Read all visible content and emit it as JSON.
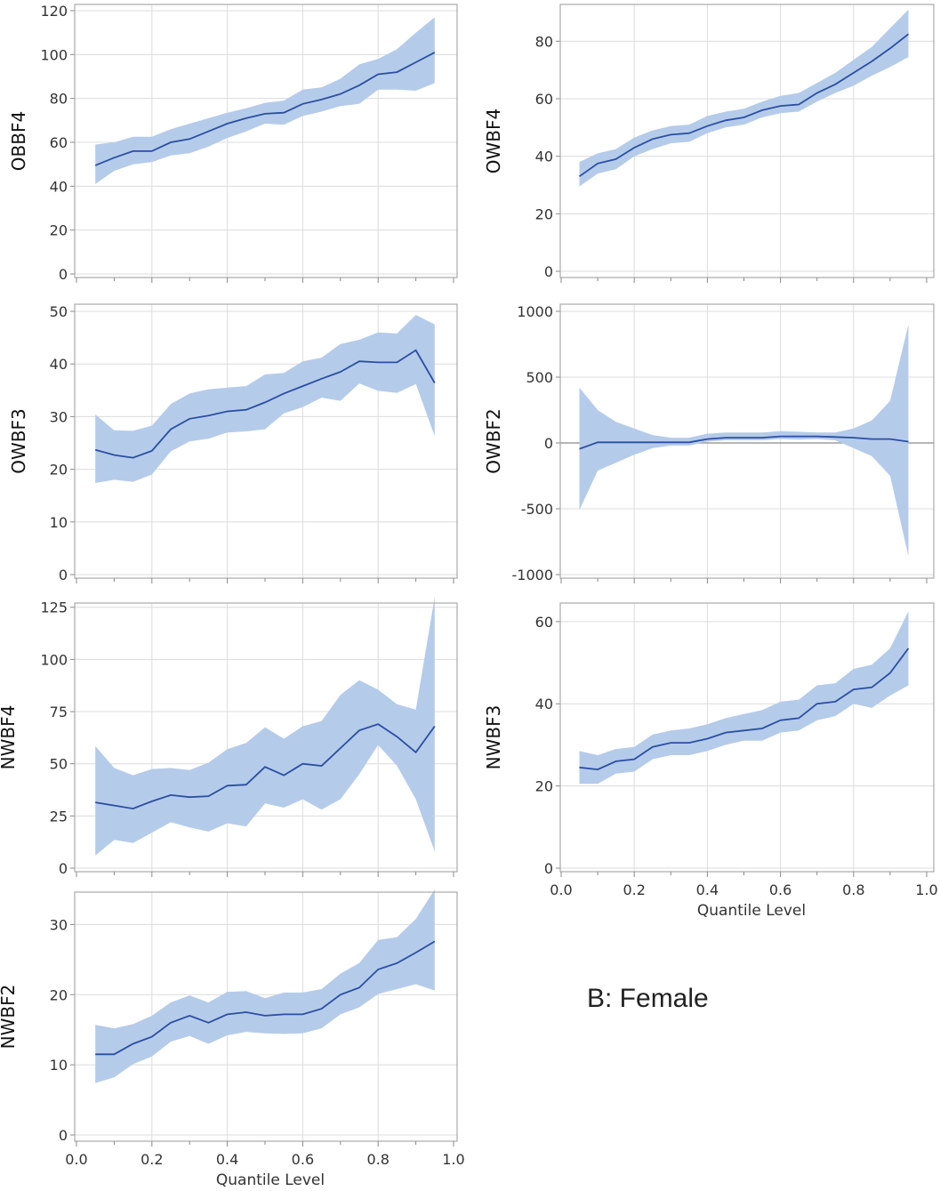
{
  "caption": "B: Female",
  "colors": {
    "band": "#b5cbea",
    "line": "#2a4fa2",
    "grid": "#dcdcdc",
    "frame": "#a9a9a9"
  },
  "chart_data": [
    {
      "id": "OBBF4",
      "type": "line",
      "ylabel": "OBBF4",
      "xlim": [
        0.0,
        1.0
      ],
      "ylim": [
        0,
        120
      ],
      "yticks": [
        "0",
        "20",
        "40",
        "60",
        "80",
        "100",
        "120"
      ],
      "x": [
        0.05,
        0.1,
        0.15,
        0.2,
        0.25,
        0.3,
        0.35,
        0.4,
        0.45,
        0.5,
        0.55,
        0.6,
        0.65,
        0.7,
        0.75,
        0.8,
        0.85,
        0.9,
        0.95
      ],
      "estimate": [
        49.5,
        53,
        56,
        56,
        60,
        61.5,
        65,
        68.5,
        71,
        73,
        73.5,
        77.5,
        79.5,
        82,
        86,
        91,
        92,
        96.5,
        101
      ],
      "lower": [
        41,
        47,
        50,
        51,
        54,
        55,
        58,
        62,
        65,
        68.5,
        68,
        72,
        74,
        76.5,
        77.5,
        84,
        84,
        83.5,
        87
      ],
      "upper": [
        59,
        60,
        62.5,
        62.5,
        66,
        68.5,
        71,
        73.5,
        75.5,
        78,
        79,
        84,
        85,
        89,
        95.5,
        98,
        102.5,
        110,
        117
      ]
    },
    {
      "id": "OWBF4",
      "type": "line",
      "ylabel": "OWBF4",
      "xlim": [
        0.0,
        1.0
      ],
      "ylim": [
        0,
        90
      ],
      "yticks": [
        "0",
        "20",
        "40",
        "60",
        "80"
      ],
      "x": [
        0.05,
        0.1,
        0.15,
        0.2,
        0.25,
        0.3,
        0.35,
        0.4,
        0.45,
        0.5,
        0.55,
        0.6,
        0.65,
        0.7,
        0.75,
        0.8,
        0.85,
        0.9,
        0.95
      ],
      "estimate": [
        33,
        37.5,
        39,
        43,
        46,
        47.5,
        48,
        50.5,
        52.5,
        53.5,
        56,
        57.5,
        58,
        62,
        65,
        69,
        73,
        77.5,
        82.5
      ],
      "lower": [
        29.5,
        34,
        35.5,
        40,
        42.5,
        44.5,
        45,
        48,
        50,
        51,
        53.5,
        55,
        55.5,
        59,
        62,
        64.5,
        68,
        71,
        74.5
      ],
      "upper": [
        38,
        41,
        42.5,
        46.5,
        49,
        50.5,
        51,
        54,
        55.5,
        56.5,
        59,
        61,
        62,
        65.5,
        69,
        73.5,
        78,
        84.5,
        91
      ]
    },
    {
      "id": "OWBF3",
      "type": "line",
      "ylabel": "OWBF3",
      "xlim": [
        0.0,
        1.0
      ],
      "ylim": [
        0,
        50
      ],
      "yticks": [
        "0",
        "10",
        "20",
        "30",
        "40",
        "50"
      ],
      "x": [
        0.05,
        0.1,
        0.15,
        0.2,
        0.25,
        0.3,
        0.35,
        0.4,
        0.45,
        0.5,
        0.55,
        0.6,
        0.65,
        0.7,
        0.75,
        0.8,
        0.85,
        0.9,
        0.95
      ],
      "estimate": [
        23.7,
        22.7,
        22.2,
        23.5,
        27.6,
        29.6,
        30.2,
        31,
        31.3,
        32.7,
        34.4,
        35.8,
        37.2,
        38.5,
        40.5,
        40.3,
        40.3,
        42.6,
        36.4
      ],
      "lower": [
        17.4,
        18,
        17.6,
        19,
        23.4,
        25.3,
        25.8,
        27,
        27.2,
        27.6,
        30.6,
        31.8,
        33.6,
        33,
        36.3,
        34.9,
        34.5,
        36.2,
        26.3
      ],
      "upper": [
        30.4,
        27.4,
        27.3,
        28.3,
        32.4,
        34.4,
        35.2,
        35.5,
        35.8,
        38,
        38.3,
        40.5,
        41.2,
        43.8,
        44.6,
        46,
        45.8,
        49.3,
        47.5
      ]
    },
    {
      "id": "OWBF2",
      "type": "line",
      "ylabel": "OWBF2",
      "xlim": [
        0.0,
        1.0
      ],
      "ylim": [
        -1000,
        1000
      ],
      "yticks": [
        "-1000",
        "-500",
        "0",
        "500",
        "1000"
      ],
      "refline": 0,
      "x": [
        0.05,
        0.1,
        0.15,
        0.2,
        0.25,
        0.3,
        0.35,
        0.4,
        0.45,
        0.5,
        0.55,
        0.6,
        0.65,
        0.7,
        0.75,
        0.8,
        0.85,
        0.9,
        0.95
      ],
      "estimate": [
        -45,
        5,
        5,
        5,
        5,
        5,
        5,
        30,
        40,
        40,
        40,
        50,
        50,
        50,
        45,
        40,
        30,
        30,
        10
      ],
      "lower": [
        -510,
        -210,
        -150,
        -90,
        -40,
        -20,
        -20,
        10,
        20,
        20,
        20,
        30,
        25,
        30,
        20,
        -40,
        -100,
        -250,
        -860
      ],
      "upper": [
        420,
        250,
        160,
        110,
        60,
        40,
        40,
        70,
        80,
        80,
        80,
        90,
        85,
        80,
        80,
        110,
        170,
        320,
        900
      ]
    },
    {
      "id": "NWBF4",
      "type": "line",
      "ylabel": "NWBF4",
      "xlim": [
        0.0,
        1.0
      ],
      "ylim": [
        0,
        130
      ],
      "yticks": [
        "0",
        "25",
        "50",
        "75",
        "100",
        "125"
      ],
      "x": [
        0.05,
        0.1,
        0.15,
        0.2,
        0.25,
        0.3,
        0.35,
        0.4,
        0.45,
        0.5,
        0.55,
        0.6,
        0.65,
        0.7,
        0.75,
        0.8,
        0.85,
        0.9,
        0.95
      ],
      "estimate": [
        31.5,
        30,
        28.5,
        32,
        35,
        34,
        34.5,
        39.5,
        40,
        48.5,
        44.5,
        50,
        49,
        57.5,
        66,
        69,
        63,
        55.5,
        68
      ],
      "lower": [
        6,
        13.5,
        12,
        17,
        22,
        19.5,
        17.5,
        21.5,
        20,
        31,
        29,
        33,
        28,
        33,
        45,
        59,
        49,
        33,
        8
      ],
      "upper": [
        58.5,
        48,
        44.5,
        47.5,
        48,
        47,
        50.5,
        57,
        60,
        67.5,
        62,
        68,
        70.5,
        83,
        90,
        85.5,
        78.5,
        76,
        130
      ]
    },
    {
      "id": "NWBF3",
      "type": "line",
      "ylabel": "NWBF3",
      "xlim": [
        0.0,
        1.0
      ],
      "ylim": [
        0,
        63
      ],
      "yticks": [
        "0",
        "20",
        "40",
        "60"
      ],
      "xticks": [
        "0.0",
        "0.2",
        "0.4",
        "0.6",
        "0.8",
        "1.0"
      ],
      "xlabel": "Quantile Level",
      "x": [
        0.05,
        0.1,
        0.15,
        0.2,
        0.25,
        0.3,
        0.35,
        0.4,
        0.45,
        0.5,
        0.55,
        0.6,
        0.65,
        0.7,
        0.75,
        0.8,
        0.85,
        0.9,
        0.95
      ],
      "estimate": [
        24.5,
        24,
        26,
        26.5,
        29.5,
        30.5,
        30.5,
        31.5,
        33,
        33.5,
        34,
        36,
        36.5,
        40,
        40.5,
        43.5,
        44,
        47.5,
        53.5
      ],
      "lower": [
        20.5,
        20.5,
        23,
        23.5,
        26.5,
        27.5,
        27.5,
        28.5,
        30,
        31,
        31,
        33,
        33.5,
        36,
        37,
        40,
        39,
        42,
        44.5
      ],
      "upper": [
        28.5,
        27.5,
        29,
        29.5,
        32.5,
        33.5,
        34,
        35,
        36.5,
        37.5,
        38.5,
        40.5,
        41,
        44.5,
        45,
        48.5,
        49.5,
        53.5,
        62.5
      ]
    },
    {
      "id": "NWBF2",
      "type": "line",
      "ylabel": "NWBF2",
      "xlim": [
        0.0,
        1.0
      ],
      "ylim": [
        0,
        35
      ],
      "yticks": [
        "0",
        "10",
        "20",
        "30"
      ],
      "xticks": [
        "0.0",
        "0.2",
        "0.4",
        "0.6",
        "0.8",
        "1.0"
      ],
      "xlabel": "Quantile Level",
      "x": [
        0.05,
        0.1,
        0.15,
        0.2,
        0.25,
        0.3,
        0.35,
        0.4,
        0.45,
        0.5,
        0.55,
        0.6,
        0.65,
        0.7,
        0.75,
        0.8,
        0.85,
        0.9,
        0.95
      ],
      "estimate": [
        11.5,
        11.5,
        13,
        14,
        16,
        17,
        16,
        17.2,
        17.5,
        17,
        17.2,
        17.2,
        18,
        20,
        21,
        23.6,
        24.5,
        26,
        27.6
      ],
      "lower": [
        7.4,
        8.2,
        10.1,
        11.2,
        13.3,
        14.1,
        13,
        14.2,
        14.7,
        14.5,
        14.4,
        14.5,
        15.2,
        17.2,
        18.2,
        20.1,
        20.8,
        21.5,
        20.6
      ],
      "upper": [
        15.7,
        15.2,
        15.8,
        17,
        18.9,
        19.9,
        18.9,
        20.4,
        20.5,
        19.5,
        20.3,
        20.3,
        20.8,
        23,
        24.5,
        27.8,
        28.2,
        30.8,
        35
      ]
    }
  ]
}
